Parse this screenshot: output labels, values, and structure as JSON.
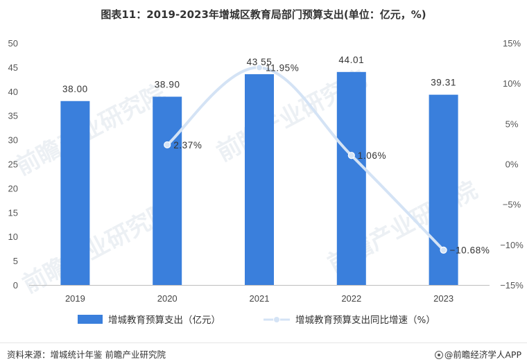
{
  "title": "图表11：2019-2023年增城区教育局部门预算支出(单位：亿元，%)",
  "source": "资料来源：增城统计年鉴 前瞻产业研究院",
  "brand": "@前瞻经济学人APP",
  "watermark": "前瞻产业研究院",
  "chart_data": {
    "type": "bar",
    "categories": [
      "2019",
      "2020",
      "2021",
      "2022",
      "2023"
    ],
    "series": [
      {
        "name": "增城教育预算支出（亿元）",
        "type": "bar",
        "axis": "left",
        "color": "#3a7fdc",
        "values": [
          38.0,
          38.9,
          43.55,
          44.01,
          39.31
        ],
        "labels": [
          "38.00",
          "38.90",
          "43.55",
          "44.01",
          "39.31"
        ]
      },
      {
        "name": "增城教育预算支出同比增速（%）",
        "type": "line",
        "axis": "right",
        "color": "#d4e3f5",
        "x": [
          "2020",
          "2021",
          "2022",
          "2023"
        ],
        "values": [
          2.37,
          11.95,
          1.06,
          -10.68
        ],
        "labels": [
          "2.37%",
          "11.95%",
          "1.06%",
          "-10.68%"
        ]
      }
    ],
    "y_left": {
      "min": 0,
      "max": 50,
      "ticks": [
        "0",
        "5",
        "10",
        "15",
        "20",
        "25",
        "30",
        "35",
        "40",
        "45",
        "50"
      ]
    },
    "y_right": {
      "min": -15,
      "max": 15,
      "ticks": [
        "-15%",
        "-10%",
        "-5%",
        "0%",
        "5%",
        "10%",
        "15%"
      ]
    },
    "grid": false,
    "legend_position": "bottom"
  }
}
